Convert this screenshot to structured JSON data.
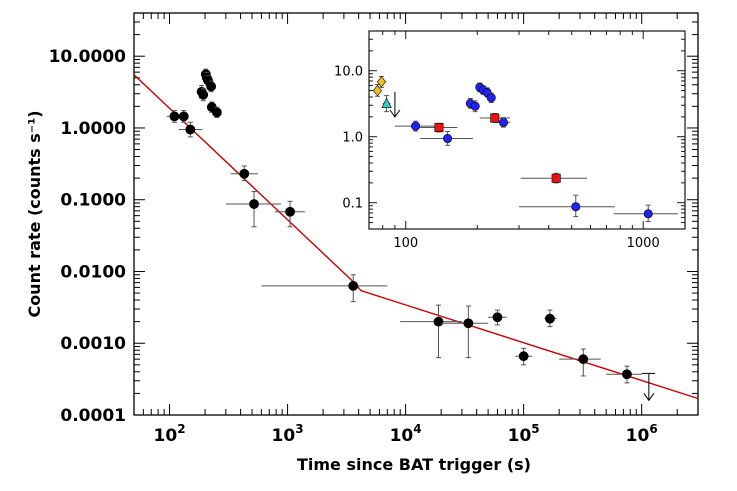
{
  "chart_data": [
    {
      "type": "scatter",
      "title": "",
      "xlabel": "Time since BAT trigger (s)",
      "ylabel": "Count rate (counts s⁻¹)",
      "x_scale": "log",
      "y_scale": "log",
      "xlim": [
        50,
        3000000
      ],
      "ylim": [
        0.0001,
        40
      ],
      "x_ticks": [
        100,
        1000,
        10000,
        100000,
        1000000
      ],
      "x_tick_labels": [
        {
          "base": "10",
          "exp": "2"
        },
        {
          "base": "10",
          "exp": "3"
        },
        {
          "base": "10",
          "exp": "4"
        },
        {
          "base": "10",
          "exp": "5"
        },
        {
          "base": "10",
          "exp": "6"
        }
      ],
      "y_ticks": [
        0.0001,
        0.001,
        0.01,
        0.1,
        1,
        10
      ],
      "y_tick_labels": [
        "0.0001",
        "0.0010",
        "0.0100",
        "0.1000",
        "1.0000",
        "10.0000"
      ],
      "grid": false,
      "legend": "none",
      "series": [
        {
          "color": "#000000",
          "marker": "circle",
          "points": [
            {
              "x": 110,
              "y": 1.45,
              "xlo": 95,
              "xhi": 130,
              "ylo": 1.2,
              "yhi": 1.75
            },
            {
              "x": 132,
              "y": 1.45,
              "xlo": 120,
              "xhi": 145,
              "ylo": 1.2,
              "yhi": 1.75
            },
            {
              "x": 150,
              "y": 0.95,
              "xlo": 120,
              "xhi": 190,
              "ylo": 0.75,
              "yhi": 1.2
            },
            {
              "x": 187,
              "y": 3.2,
              "xlo": 180,
              "xhi": 196,
              "ylo": 2.6,
              "yhi": 3.9
            },
            {
              "x": 193,
              "y": 2.9,
              "xlo": 187,
              "xhi": 199,
              "ylo": 2.4,
              "yhi": 3.5
            },
            {
              "x": 203,
              "y": 5.6,
              "xlo": 197,
              "xhi": 209,
              "ylo": 4.8,
              "yhi": 6.6
            },
            {
              "x": 207,
              "y": 5.0,
              "xlo": 201,
              "xhi": 213,
              "ylo": 4.3,
              "yhi": 5.9
            },
            {
              "x": 212,
              "y": 4.6,
              "xlo": 206,
              "xhi": 218,
              "ylo": 3.9,
              "yhi": 5.4
            },
            {
              "x": 225,
              "y": 3.8,
              "xlo": 218,
              "xhi": 232,
              "ylo": 3.2,
              "yhi": 4.5
            },
            {
              "x": 228,
              "y": 1.95,
              "xlo": 215,
              "xhi": 241,
              "ylo": 1.65,
              "yhi": 2.3
            },
            {
              "x": 252,
              "y": 1.65,
              "xlo": 238,
              "xhi": 266,
              "ylo": 1.4,
              "yhi": 1.95
            },
            {
              "x": 430,
              "y": 0.23,
              "xlo": 330,
              "xhi": 560,
              "ylo": 0.185,
              "yhi": 0.295
            },
            {
              "x": 520,
              "y": 0.087,
              "xlo": 300,
              "xhi": 880,
              "ylo": 0.042,
              "yhi": 0.13
            },
            {
              "x": 1050,
              "y": 0.068,
              "xlo": 780,
              "xhi": 1400,
              "ylo": 0.042,
              "yhi": 0.095
            },
            {
              "x": 3600,
              "y": 0.0063,
              "xlo": 600,
              "xhi": 7000,
              "ylo": 0.0038,
              "yhi": 0.009
            },
            {
              "x": 19000,
              "y": 0.002,
              "xlo": 9000,
              "xhi": 30000,
              "ylo": 0.00063,
              "yhi": 0.0034
            },
            {
              "x": 34000,
              "y": 0.0019,
              "xlo": 20000,
              "xhi": 50000,
              "ylo": 0.00063,
              "yhi": 0.0033
            },
            {
              "x": 60000,
              "y": 0.0023,
              "xlo": 50000,
              "xhi": 72000,
              "ylo": 0.0018,
              "yhi": 0.0029
            },
            {
              "x": 100000,
              "y": 0.00066,
              "xlo": 85000,
              "xhi": 118000,
              "ylo": 0.0005,
              "yhi": 0.00085
            },
            {
              "x": 167000,
              "y": 0.0022,
              "xlo": 150000,
              "xhi": 190000,
              "ylo": 0.0017,
              "yhi": 0.0029
            },
            {
              "x": 320000,
              "y": 0.0006,
              "xlo": 200000,
              "xhi": 450000,
              "ylo": 0.00035,
              "yhi": 0.00083
            },
            {
              "x": 750000,
              "y": 0.00037,
              "xlo": 500000,
              "xhi": 1000000,
              "ylo": 0.00028,
              "yhi": 0.00048
            }
          ]
        }
      ],
      "upper_limits": [
        {
          "x": 1150000,
          "y": 0.00038,
          "xlo": 1000000,
          "xhi": 1300000,
          "arrow_to": 0.00016,
          "color": "#000000"
        }
      ],
      "model_line": {
        "color": "#cc0000",
        "points": [
          [
            50,
            5.5
          ],
          [
            3600,
            0.0072
          ],
          [
            4200,
            0.0054
          ],
          [
            3000000,
            0.00017
          ]
        ]
      }
    },
    {
      "type": "scatter",
      "title": "",
      "xlabel": "",
      "ylabel": "",
      "x_scale": "log",
      "y_scale": "log",
      "xlim": [
        70,
        1500
      ],
      "ylim": [
        0.04,
        40
      ],
      "x_ticks": [
        100,
        1000
      ],
      "x_tick_labels": [
        "100",
        "1000"
      ],
      "y_ticks": [
        0.1,
        1,
        10
      ],
      "y_tick_labels": [
        "0.1",
        "1.0",
        "10.0"
      ],
      "grid": false,
      "legend": "none",
      "series": [
        {
          "color": "#f0c020",
          "marker": "diamond",
          "points": [
            {
              "x": 76,
              "y": 5.0,
              "xlo": 74,
              "xhi": 78,
              "ylo": 4.1,
              "yhi": 6.2
            },
            {
              "x": 79,
              "y": 6.8,
              "xlo": 77,
              "xhi": 81,
              "ylo": 5.6,
              "yhi": 8.2
            }
          ]
        },
        {
          "color": "#33cccc",
          "marker": "triangle",
          "points": [
            {
              "x": 83,
              "y": 3.2,
              "xlo": 80,
              "xhi": 86,
              "ylo": 2.4,
              "yhi": 4.2
            }
          ]
        },
        {
          "color": "#2222ee",
          "marker": "circle",
          "points": [
            {
              "x": 110,
              "y": 1.45,
              "xlo": 90,
              "xhi": 135,
              "ylo": 1.22,
              "yhi": 1.72
            },
            {
              "x": 150,
              "y": 0.94,
              "xlo": 115,
              "xhi": 192,
              "ylo": 0.74,
              "yhi": 1.2
            },
            {
              "x": 187,
              "y": 3.2,
              "xlo": 181,
              "xhi": 193,
              "ylo": 2.7,
              "yhi": 3.8
            },
            {
              "x": 196,
              "y": 2.9,
              "xlo": 190,
              "xhi": 202,
              "ylo": 2.4,
              "yhi": 3.5
            },
            {
              "x": 205,
              "y": 5.6,
              "xlo": 199,
              "xhi": 211,
              "ylo": 4.8,
              "yhi": 6.5
            },
            {
              "x": 212,
              "y": 5.1,
              "xlo": 206,
              "xhi": 218,
              "ylo": 4.4,
              "yhi": 5.9
            },
            {
              "x": 220,
              "y": 4.7,
              "xlo": 214,
              "xhi": 226,
              "ylo": 4.0,
              "yhi": 5.5
            },
            {
              "x": 229,
              "y": 3.9,
              "xlo": 222,
              "xhi": 236,
              "ylo": 3.3,
              "yhi": 4.6
            },
            {
              "x": 258,
              "y": 1.65,
              "xlo": 240,
              "xhi": 275,
              "ylo": 1.4,
              "yhi": 1.95
            },
            {
              "x": 520,
              "y": 0.087,
              "xlo": 300,
              "xhi": 760,
              "ylo": 0.062,
              "yhi": 0.13
            },
            {
              "x": 1050,
              "y": 0.068,
              "xlo": 750,
              "xhi": 1400,
              "ylo": 0.052,
              "yhi": 0.092
            }
          ]
        },
        {
          "color": "#ee1111",
          "marker": "square",
          "points": [
            {
              "x": 138,
              "y": 1.38,
              "xlo": 115,
              "xhi": 165,
              "ylo": 1.18,
              "yhi": 1.6
            },
            {
              "x": 237,
              "y": 1.92,
              "xlo": 205,
              "xhi": 275,
              "ylo": 1.65,
              "yhi": 2.25
            },
            {
              "x": 430,
              "y": 0.235,
              "xlo": 305,
              "xhi": 580,
              "ylo": 0.2,
              "yhi": 0.28
            }
          ]
        }
      ],
      "upper_limits": [
        {
          "x": 90,
          "y": 4.8,
          "xlo": 90,
          "xhi": 90,
          "arrow_to": 2.0,
          "color": "#000000"
        }
      ],
      "model_line": null
    }
  ]
}
